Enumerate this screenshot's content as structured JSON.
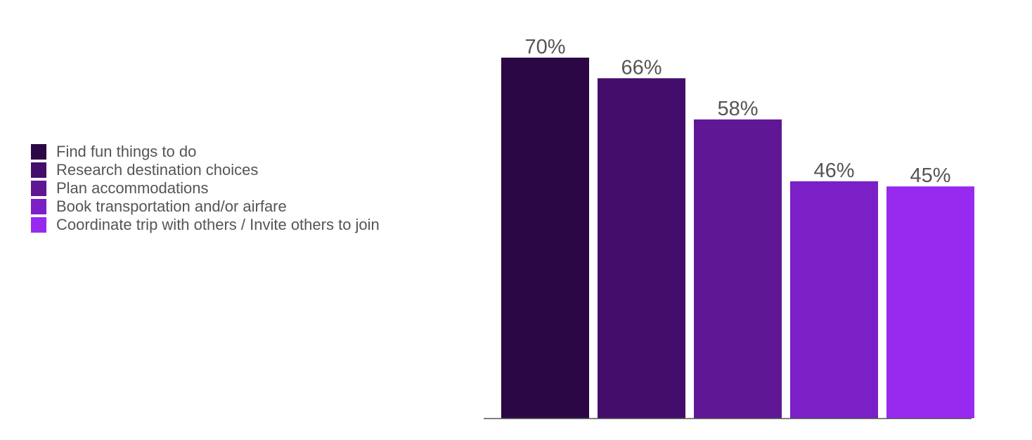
{
  "chart_data": {
    "type": "bar",
    "title": "",
    "xlabel": "",
    "ylabel": "",
    "ylim": [
      0,
      70
    ],
    "grid": false,
    "legend_position": "left",
    "categories": [
      "Find fun things to do",
      "Research destination choices",
      "Plan accommodations",
      "Book transportation and/or airfare",
      "Coordinate trip with others / Invite others to join"
    ],
    "values": [
      70,
      66,
      58,
      46,
      45
    ],
    "value_labels": [
      "70%",
      "66%",
      "58%",
      "46%",
      "45%"
    ],
    "colors": [
      "#2b0845",
      "#440d6b",
      "#5f1796",
      "#7a20c6",
      "#982af0"
    ]
  }
}
